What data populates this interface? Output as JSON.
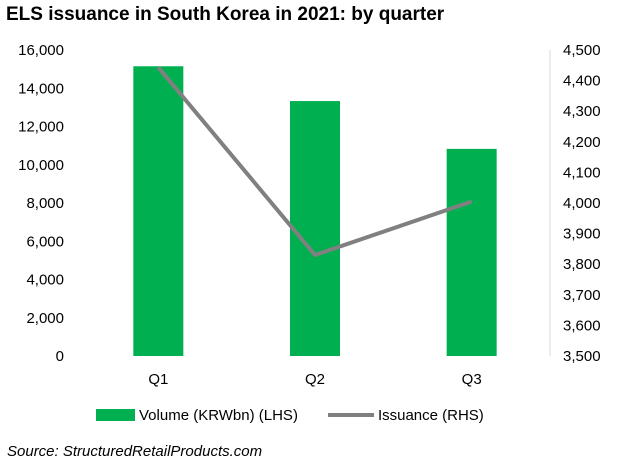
{
  "chart_data": {
    "type": "bar",
    "title": "ELS issuance in South Korea in 2021: by quarter",
    "categories": [
      "Q1",
      "Q2",
      "Q3"
    ],
    "series": [
      {
        "name": "Volume (KRWbn) (LHS)",
        "type": "bar",
        "axis": "left",
        "color": "#00B050",
        "values": [
          15150,
          13330,
          10830
        ]
      },
      {
        "name": "Issuance (RHS)",
        "type": "line",
        "axis": "right",
        "color": "#808080",
        "values": [
          4443,
          3830,
          4005
        ]
      }
    ],
    "y_left": {
      "min": 0,
      "max": 16000,
      "step": 2000,
      "tick_labels": [
        "0",
        "2,000",
        "4,000",
        "6,000",
        "8,000",
        "10,000",
        "12,000",
        "14,000",
        "16,000"
      ]
    },
    "y_right": {
      "min": 3500,
      "max": 4500,
      "step": 100,
      "tick_labels": [
        "3,500",
        "3,600",
        "3,700",
        "3,800",
        "3,900",
        "4,000",
        "4,100",
        "4,200",
        "4,300",
        "4,400",
        "4,500"
      ]
    },
    "grid": false,
    "legend": {
      "position": "bottom",
      "entries": [
        "Volume (KRWbn) (LHS)",
        "Issuance (RHS)"
      ]
    }
  },
  "source": "Source: StructuredRetailProducts.com"
}
